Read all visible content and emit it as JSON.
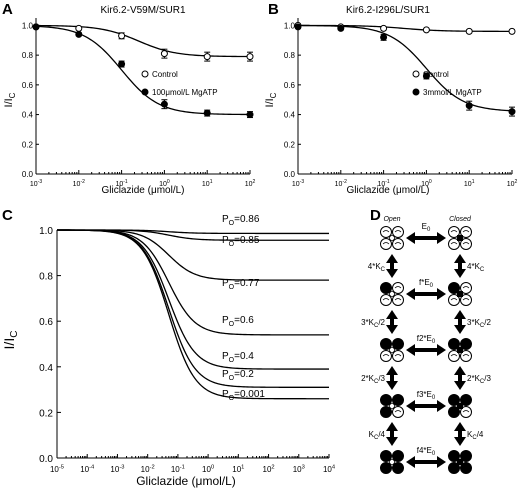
{
  "panels": {
    "a": {
      "label": "A",
      "title": "Kir6.2-V59M/SUR1"
    },
    "b": {
      "label": "B",
      "title": "Kir6.2-I296L/SUR1"
    },
    "c": {
      "label": "C"
    },
    "d": {
      "label": "D"
    }
  },
  "chart_data": [
    {
      "id": "A",
      "type": "scatter",
      "title": "Kir6.2-V59M/SUR1",
      "xlabel": "Gliclazide (μmol/L)",
      "ylabel": "I/I_C",
      "xscale": "log",
      "xlim": [
        0.001,
        100
      ],
      "ylim": [
        0.0,
        1.05
      ],
      "xticks": [
        "10-3",
        "10-2",
        "10-1",
        "100",
        "101",
        "102"
      ],
      "yticks": [
        "0.0",
        "0.2",
        "0.4",
        "0.6",
        "0.8",
        "1.0"
      ],
      "legend_position": "right",
      "series": [
        {
          "name": "Control",
          "marker": "open-circle",
          "x": [
            0.001,
            0.01,
            0.1,
            1,
            10,
            100
          ],
          "y": [
            0.99,
            0.98,
            0.93,
            0.81,
            0.79,
            0.79
          ],
          "err": [
            0.01,
            0.01,
            0.02,
            0.03,
            0.03,
            0.03
          ],
          "fit": {
            "high": 1.0,
            "low": 0.79,
            "ic50": 0.25,
            "hill": 1
          }
        },
        {
          "name": "100μmol/L MgATP",
          "marker": "filled-circle",
          "x": [
            0.001,
            0.01,
            0.1,
            1,
            10,
            100
          ],
          "y": [
            0.99,
            0.94,
            0.74,
            0.47,
            0.41,
            0.4
          ],
          "err": [
            0.01,
            0.01,
            0.02,
            0.03,
            0.02,
            0.02
          ],
          "fit": {
            "high": 1.0,
            "low": 0.4,
            "ic50": 0.1,
            "hill": 1
          }
        }
      ]
    },
    {
      "id": "B",
      "type": "scatter",
      "title": "Kir6.2-I296L/SUR1",
      "xlabel": "Gliclazide (μmol/L)",
      "ylabel": "I/I_C",
      "xscale": "log",
      "xlim": [
        0.001,
        100
      ],
      "ylim": [
        0.0,
        1.05
      ],
      "xticks": [
        "10-3",
        "10-2",
        "10-1",
        "100",
        "101",
        "102"
      ],
      "yticks": [
        "0.0",
        "0.2",
        "0.4",
        "0.6",
        "0.8",
        "1.0"
      ],
      "legend_position": "right",
      "series": [
        {
          "name": "Control",
          "marker": "open-circle",
          "x": [
            0.001,
            0.01,
            0.1,
            1,
            10,
            100
          ],
          "y": [
            1.0,
            0.99,
            0.98,
            0.97,
            0.96,
            0.96
          ],
          "err": [
            0.01,
            0.01,
            0.01,
            0.01,
            0.01,
            0.01
          ],
          "fit": {
            "high": 1.0,
            "low": 0.96,
            "ic50": 0.3,
            "hill": 1
          }
        },
        {
          "name": "3mmol/L MgATP",
          "marker": "filled-circle",
          "x": [
            0.001,
            0.01,
            0.1,
            1,
            10,
            100
          ],
          "y": [
            0.99,
            0.98,
            0.92,
            0.66,
            0.46,
            0.42
          ],
          "err": [
            0.01,
            0.01,
            0.02,
            0.02,
            0.03,
            0.03
          ],
          "fit": {
            "high": 1.0,
            "low": 0.42,
            "ic50": 1.0,
            "hill": 1
          }
        }
      ]
    },
    {
      "id": "C",
      "type": "line",
      "xlabel": "Gliclazide (μmol/L)",
      "ylabel": "I/I_C",
      "xscale": "log",
      "xlim": [
        1e-05,
        10000
      ],
      "ylim": [
        0.0,
        1.0
      ],
      "xticks": [
        "10-5",
        "10-4",
        "10-3",
        "10-2",
        "10-1",
        "100",
        "101",
        "102",
        "103",
        "104"
      ],
      "yticks": [
        "0.0",
        "0.2",
        "0.4",
        "0.6",
        "0.8",
        "1.0"
      ],
      "series": [
        {
          "name": "PO=0.86",
          "po": 0.86,
          "plateau": 0.985,
          "ic50": 0.05
        },
        {
          "name": "PO=0.85",
          "po": 0.85,
          "plateau": 0.955,
          "ic50": 0.05
        },
        {
          "name": "PO=0.77",
          "po": 0.77,
          "plateau": 0.78,
          "ic50": 0.05
        },
        {
          "name": "PO=0.6",
          "po": 0.6,
          "plateau": 0.54,
          "ic50": 0.05
        },
        {
          "name": "PO=0.4",
          "po": 0.4,
          "plateau": 0.39,
          "ic50": 0.05
        },
        {
          "name": "PO=0.2",
          "po": 0.2,
          "plateau": 0.31,
          "ic50": 0.05
        },
        {
          "name": "PO=0.001",
          "po": 0.001,
          "plateau": 0.26,
          "ic50": 0.05
        }
      ]
    }
  ],
  "scheme": {
    "open_label": "Open",
    "closed_label": "Closed",
    "horizontal_labels": [
      "E0",
      "f*E0",
      "f2*E0",
      "f3*E0",
      "f4*E0"
    ],
    "left_vertical_labels": [
      "4*KC",
      "3*KC/2",
      "2*KC/3",
      "KC/4"
    ],
    "right_vertical_labels": [
      "4*KC",
      "3*KC/2",
      "2*KC/3",
      "KC/4"
    ],
    "bound_counts": [
      0,
      1,
      2,
      3,
      4
    ]
  }
}
